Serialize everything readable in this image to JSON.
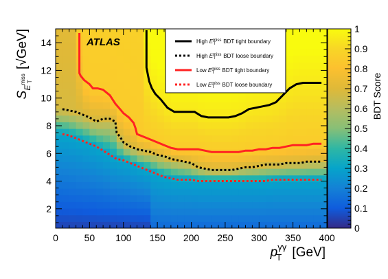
{
  "chart_data": {
    "type": "heatmap",
    "title": "",
    "annotation": "ATLAS",
    "xlabel": {
      "symbol": "p",
      "sub": "T",
      "sup": "γγ",
      "unit": "[GeV]"
    },
    "ylabel": {
      "symbol": "S",
      "sub": "E",
      "subsub": "T",
      "subsup": "miss",
      "unit": "[√GeV]"
    },
    "colorbar_label": "BDT Score",
    "xlim": [
      0,
      400
    ],
    "ylim": [
      0.6,
      15
    ],
    "zlim": [
      0,
      1
    ],
    "x_ticks": [
      0,
      50,
      100,
      150,
      200,
      250,
      300,
      350,
      400
    ],
    "y_ticks": [
      2,
      4,
      6,
      8,
      10,
      12,
      14
    ],
    "z_ticks": [
      0,
      0.1,
      0.2,
      0.3,
      0.4,
      0.5,
      0.6,
      0.7,
      0.8,
      0.9,
      1
    ],
    "z_tick_labels": [
      "0",
      "0.1",
      "0.2",
      "0.3",
      "0.4",
      "0.5",
      "0.6",
      "0.7",
      "0.8",
      "0.9",
      "1"
    ],
    "legend_position": "top-right",
    "series": [
      {
        "name": "High E_T^miss BDT tight boundary",
        "label_pre": "High ",
        "label_post": " BDT tight boundary",
        "color": "#000000",
        "style": "solid",
        "x": [
          134,
          134,
          136,
          138,
          142,
          147,
          155,
          165,
          175,
          185,
          195,
          205,
          215,
          225,
          235,
          245,
          255,
          265,
          275,
          285,
          295,
          305,
          315,
          325,
          335,
          345,
          355,
          365,
          375,
          385,
          392
        ],
        "y": [
          14.9,
          12.2,
          11.7,
          11.2,
          10.7,
          10.3,
          9.9,
          9.3,
          9.0,
          9.0,
          9.0,
          9.0,
          8.7,
          8.6,
          8.6,
          8.6,
          8.6,
          8.7,
          8.9,
          9.2,
          9.3,
          9.4,
          9.5,
          9.7,
          10.2,
          10.7,
          11.0,
          11.1,
          11.1,
          11.1,
          11.1
        ]
      },
      {
        "name": "High E_T^miss BDT loose boundary",
        "label_pre": "High ",
        "label_post": " BDT loose boundary",
        "color": "#000000",
        "style": "dotted",
        "x": [
          10,
          20,
          30,
          40,
          50,
          60,
          70,
          80,
          88,
          90,
          95,
          100,
          110,
          120,
          130,
          140,
          150,
          160,
          170,
          180,
          190,
          200,
          210,
          220,
          230,
          240,
          250,
          260,
          270,
          280,
          290,
          300,
          310,
          320,
          330,
          340,
          350,
          360,
          370,
          380,
          392
        ],
        "y": [
          9.2,
          9.1,
          9.0,
          8.8,
          8.6,
          8.3,
          8.5,
          8.5,
          8.3,
          7.5,
          7.2,
          6.8,
          6.5,
          6.3,
          6.2,
          6.1,
          5.9,
          5.8,
          5.6,
          5.5,
          5.4,
          5.3,
          5.0,
          4.9,
          4.8,
          4.8,
          4.8,
          4.8,
          4.9,
          5.0,
          5.0,
          5.1,
          5.2,
          5.2,
          5.2,
          5.3,
          5.3,
          5.3,
          5.4,
          5.4,
          5.4
        ]
      },
      {
        "name": "Low E_T^miss BDT tight boundary",
        "label_pre": "Low ",
        "label_post": " BDT tight boundary",
        "color": "#ff2222",
        "style": "solid",
        "x": [
          35,
          35,
          37,
          42,
          50,
          55,
          62,
          70,
          80,
          88,
          95,
          100,
          108,
          115,
          118,
          120,
          130,
          140,
          150,
          160,
          170,
          180,
          190,
          200,
          210,
          220,
          230,
          240,
          250,
          260,
          270,
          280,
          290,
          300,
          310,
          320,
          330,
          340,
          350,
          360,
          370,
          380,
          392
        ],
        "y": [
          14.7,
          11.8,
          11.6,
          11.3,
          11.0,
          10.7,
          10.7,
          10.6,
          10.2,
          9.6,
          9.2,
          8.9,
          8.6,
          8.2,
          7.8,
          7.4,
          7.2,
          7.0,
          6.8,
          6.6,
          6.4,
          6.3,
          6.3,
          6.3,
          6.3,
          6.2,
          6.1,
          6.1,
          6.1,
          6.1,
          6.1,
          6.2,
          6.2,
          6.3,
          6.3,
          6.4,
          6.4,
          6.5,
          6.6,
          6.6,
          6.6,
          6.7,
          6.7
        ]
      },
      {
        "name": "Low E_T^miss BDT loose boundary",
        "label_pre": "Low ",
        "label_post": " BDT loose boundary",
        "color": "#ff2222",
        "style": "dotted",
        "x": [
          10,
          20,
          30,
          40,
          50,
          60,
          70,
          80,
          90,
          100,
          110,
          120,
          130,
          140,
          150,
          160,
          170,
          180,
          190,
          200,
          210,
          220,
          230,
          240,
          250,
          260,
          270,
          280,
          290,
          300,
          310,
          320,
          330,
          340,
          350,
          360,
          370,
          380,
          392
        ],
        "y": [
          7.4,
          7.3,
          7.1,
          6.9,
          6.7,
          6.5,
          6.2,
          5.9,
          5.6,
          5.5,
          5.3,
          5.1,
          4.9,
          4.7,
          4.5,
          4.3,
          4.2,
          4.1,
          4.1,
          4.1,
          4.0,
          4.0,
          4.0,
          4.0,
          4.0,
          4.0,
          4.0,
          4.0,
          4.0,
          4.0,
          4.0,
          4.1,
          4.1,
          4.1,
          4.1,
          4.1,
          4.1,
          4.1,
          4.1
        ]
      }
    ]
  }
}
